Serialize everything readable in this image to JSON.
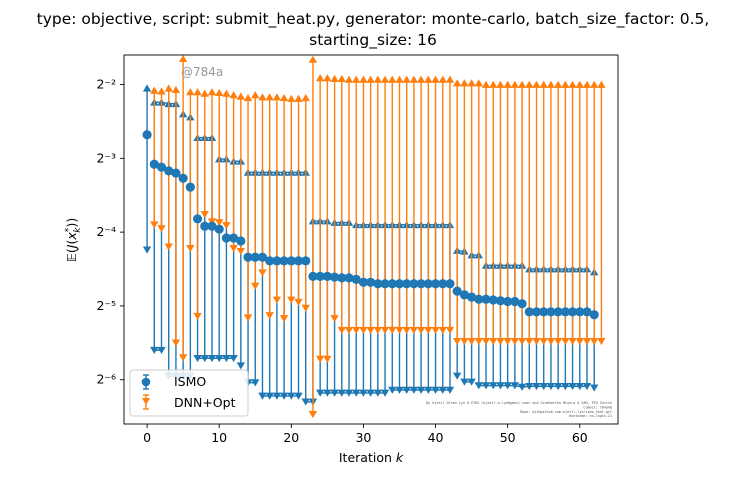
{
  "chart_data": {
    "type": "scatter",
    "title_line1": "type: objective, script: submit_heat.py, generator: monte-carlo, batch_size_factor: 0.5,",
    "title_line2": "starting_size: 16",
    "xlabel": "Iteration k",
    "ylabel": "E(J(x*_k))",
    "xlim": [
      -3.2,
      65.3
    ],
    "ylog_base": 2,
    "ylim_log2": [
      -6.6,
      -1.6
    ],
    "x_ticks": [
      0,
      10,
      20,
      30,
      40,
      50,
      60
    ],
    "y_ticks_log2": [
      -6,
      -5,
      -4,
      -3,
      -2
    ],
    "y_tick_labels": [
      "2⁻⁶",
      "2⁻⁵",
      "2⁻⁴",
      "2⁻³",
      "2⁻²"
    ],
    "watermark": "@784a",
    "footer_note": [
      "By Kjetil Olsen Lye @ ETH2 <kjetil.o.lye@gmail.com> and Siddhartha Mishra @ SAM, ETH Zurich",
      "Commit: 784a4b",
      "Repo: git@github.com:kjetil-lye/ismo_heat.git",
      "Hostname: ex-login-21"
    ],
    "legend": {
      "placement": "lower-left",
      "entries": [
        "ISMO",
        "DNN+Opt"
      ]
    },
    "colors": {
      "ISMO": "#1f77b4",
      "DNN+Opt": "#ff7f0e"
    },
    "series": [
      {
        "name": "ISMO",
        "points": [
          [
            0,
            -2.68,
            -2.05,
            -4.24
          ],
          [
            1,
            -3.08,
            -2.24,
            -5.6
          ],
          [
            2,
            -3.12,
            -2.24,
            -5.6
          ],
          [
            3,
            -3.17,
            -2.26,
            -5.95
          ],
          [
            4,
            -3.2,
            -2.26,
            -5.95
          ],
          [
            5,
            -3.27,
            -2.4,
            -5.95
          ],
          [
            6,
            -3.39,
            -2.44,
            -5.95
          ],
          [
            7,
            -3.82,
            -2.72,
            -5.71
          ],
          [
            8,
            -3.92,
            -2.72,
            -5.71
          ],
          [
            9,
            -3.92,
            -2.72,
            -5.71
          ],
          [
            10,
            -3.96,
            -3.01,
            -5.71
          ],
          [
            11,
            -4.08,
            -3.01,
            -5.71
          ],
          [
            12,
            -4.08,
            -3.04,
            -5.71
          ],
          [
            13,
            -4.12,
            -3.04,
            -5.81
          ],
          [
            14,
            -4.34,
            -3.19,
            -6.04
          ],
          [
            15,
            -4.34,
            -3.19,
            -6.04
          ],
          [
            16,
            -4.34,
            -3.19,
            -6.22
          ],
          [
            17,
            -4.39,
            -3.19,
            -6.22
          ],
          [
            18,
            -4.39,
            -3.19,
            -6.22
          ],
          [
            19,
            -4.39,
            -3.19,
            -6.22
          ],
          [
            20,
            -4.39,
            -3.19,
            -6.22
          ],
          [
            21,
            -4.39,
            -3.19,
            -6.22
          ],
          [
            22,
            -4.39,
            -3.19,
            -6.3
          ],
          [
            23,
            -4.6,
            -3.85,
            -6.3
          ],
          [
            24,
            -4.6,
            -3.85,
            -6.18
          ],
          [
            25,
            -4.6,
            -3.85,
            -6.18
          ],
          [
            26,
            -4.61,
            -3.87,
            -6.18
          ],
          [
            27,
            -4.62,
            -3.87,
            -6.18
          ],
          [
            28,
            -4.62,
            -3.87,
            -6.18
          ],
          [
            29,
            -4.64,
            -3.9,
            -6.18
          ],
          [
            30,
            -4.68,
            -3.9,
            -6.18
          ],
          [
            31,
            -4.68,
            -3.9,
            -6.18
          ],
          [
            32,
            -4.7,
            -3.9,
            -6.18
          ],
          [
            33,
            -4.7,
            -3.9,
            -6.18
          ],
          [
            34,
            -4.7,
            -3.9,
            -6.14
          ],
          [
            35,
            -4.7,
            -3.9,
            -6.14
          ],
          [
            36,
            -4.7,
            -3.9,
            -6.14
          ],
          [
            37,
            -4.7,
            -3.9,
            -6.14
          ],
          [
            38,
            -4.7,
            -3.9,
            -6.14
          ],
          [
            39,
            -4.7,
            -3.9,
            -6.14
          ],
          [
            40,
            -4.7,
            -3.9,
            -6.14
          ],
          [
            41,
            -4.7,
            -3.9,
            -6.14
          ],
          [
            42,
            -4.7,
            -3.9,
            -6.14
          ],
          [
            43,
            -4.8,
            -4.25,
            -5.95
          ],
          [
            44,
            -4.85,
            -4.26,
            -6.03
          ],
          [
            45,
            -4.88,
            -4.31,
            -6.03
          ],
          [
            46,
            -4.91,
            -4.31,
            -6.08
          ],
          [
            47,
            -4.91,
            -4.45,
            -6.08
          ],
          [
            48,
            -4.92,
            -4.45,
            -6.08
          ],
          [
            49,
            -4.93,
            -4.45,
            -6.08
          ],
          [
            50,
            -4.94,
            -4.45,
            -6.08
          ],
          [
            51,
            -4.94,
            -4.45,
            -6.08
          ],
          [
            52,
            -4.97,
            -4.45,
            -6.1
          ],
          [
            53,
            -5.08,
            -4.5,
            -6.09
          ],
          [
            54,
            -5.08,
            -4.5,
            -6.09
          ],
          [
            55,
            -5.08,
            -4.5,
            -6.09
          ],
          [
            56,
            -5.08,
            -4.5,
            -6.09
          ],
          [
            57,
            -5.08,
            -4.5,
            -6.09
          ],
          [
            58,
            -5.08,
            -4.5,
            -6.09
          ],
          [
            59,
            -5.08,
            -4.5,
            -6.09
          ],
          [
            60,
            -5.08,
            -4.5,
            -6.09
          ],
          [
            61,
            -5.08,
            -4.5,
            -6.09
          ],
          [
            62,
            -5.12,
            -4.54,
            -6.11
          ]
        ]
      },
      {
        "name": "DNN+Opt",
        "points": [
          [
            1,
            -2.08,
            -3.9
          ],
          [
            2,
            -2.09,
            -3.95
          ],
          [
            3,
            -2.05,
            -4.2
          ],
          [
            4,
            -2.07,
            -5.5
          ],
          [
            5,
            -1.65,
            -5.7
          ],
          [
            6,
            -2.1,
            -4.22
          ],
          [
            7,
            -2.1,
            -5.14
          ],
          [
            8,
            -2.12,
            -3.76
          ],
          [
            9,
            -2.1,
            -3.86
          ],
          [
            10,
            -2.11,
            -3.87
          ],
          [
            11,
            -2.12,
            -3.91
          ],
          [
            12,
            -2.14,
            -4.22
          ],
          [
            13,
            -2.16,
            -4.26
          ],
          [
            14,
            -2.18,
            -5.16
          ],
          [
            15,
            -2.14,
            -4.73
          ],
          [
            16,
            -2.17,
            -4.55
          ],
          [
            17,
            -2.17,
            -5.13
          ],
          [
            18,
            -2.17,
            -4.92
          ],
          [
            19,
            -2.18,
            -5.17
          ],
          [
            20,
            -2.19,
            -4.92
          ],
          [
            21,
            -2.19,
            -4.95
          ],
          [
            22,
            -2.18,
            -5.03
          ],
          [
            23,
            -1.66,
            -6.47
          ],
          [
            24,
            -1.91,
            -5.72
          ],
          [
            25,
            -1.91,
            -5.72
          ],
          [
            26,
            -1.92,
            -5.17
          ],
          [
            27,
            -1.92,
            -5.33
          ],
          [
            28,
            -1.93,
            -5.33
          ],
          [
            29,
            -1.93,
            -5.33
          ],
          [
            30,
            -1.93,
            -5.33
          ],
          [
            31,
            -1.93,
            -5.33
          ],
          [
            32,
            -1.93,
            -5.33
          ],
          [
            33,
            -1.93,
            -5.33
          ],
          [
            34,
            -1.93,
            -5.33
          ],
          [
            35,
            -1.93,
            -5.33
          ],
          [
            36,
            -1.93,
            -5.33
          ],
          [
            37,
            -1.93,
            -5.33
          ],
          [
            38,
            -1.93,
            -5.33
          ],
          [
            39,
            -1.93,
            -5.33
          ],
          [
            40,
            -1.93,
            -5.33
          ],
          [
            41,
            -1.93,
            -5.33
          ],
          [
            42,
            -1.93,
            -5.33
          ],
          [
            43,
            -1.98,
            -5.48
          ],
          [
            44,
            -1.98,
            -5.48
          ],
          [
            45,
            -1.98,
            -5.48
          ],
          [
            46,
            -1.98,
            -5.48
          ],
          [
            47,
            -2.0,
            -5.48
          ],
          [
            48,
            -2.0,
            -5.48
          ],
          [
            49,
            -2.0,
            -5.48
          ],
          [
            50,
            -2.0,
            -5.48
          ],
          [
            51,
            -2.0,
            -5.48
          ],
          [
            52,
            -2.0,
            -5.48
          ],
          [
            53,
            -2.0,
            -5.48
          ],
          [
            54,
            -2.0,
            -5.48
          ],
          [
            55,
            -2.0,
            -5.48
          ],
          [
            56,
            -2.0,
            -5.48
          ],
          [
            57,
            -2.0,
            -5.48
          ],
          [
            58,
            -2.0,
            -5.48
          ],
          [
            59,
            -2.0,
            -5.48
          ],
          [
            60,
            -2.0,
            -5.48
          ],
          [
            61,
            -2.0,
            -5.48
          ],
          [
            62,
            -2.0,
            -5.48
          ],
          [
            63,
            -2.0,
            -5.48
          ]
        ]
      }
    ]
  }
}
